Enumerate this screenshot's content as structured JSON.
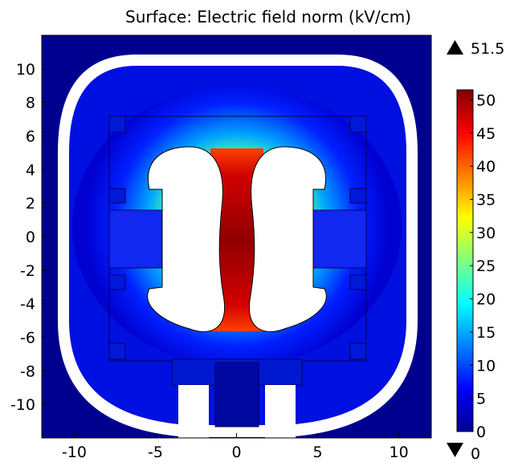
{
  "chart_data": {
    "type": "heatmap",
    "title": "Surface: Electric field norm (kV/cm)",
    "xlabel": "",
    "ylabel": "",
    "xlim": [
      -12,
      12
    ],
    "ylim": [
      -12,
      12
    ],
    "x_ticks": [
      -10,
      -5,
      0,
      5,
      10
    ],
    "y_ticks": [
      -10,
      -8,
      -6,
      -4,
      -2,
      0,
      2,
      4,
      6,
      8,
      10
    ],
    "colorbar": {
      "min": 0,
      "max": 51.5,
      "ticks": [
        0,
        5,
        10,
        15,
        20,
        25,
        30,
        35,
        40,
        45,
        50
      ],
      "max_label": "51.5",
      "min_label": "0",
      "colormap": "rainbow"
    },
    "colors": {
      "field_low": "#00008f",
      "field_high": "#800000",
      "domain_void": "#ffffff"
    }
  }
}
